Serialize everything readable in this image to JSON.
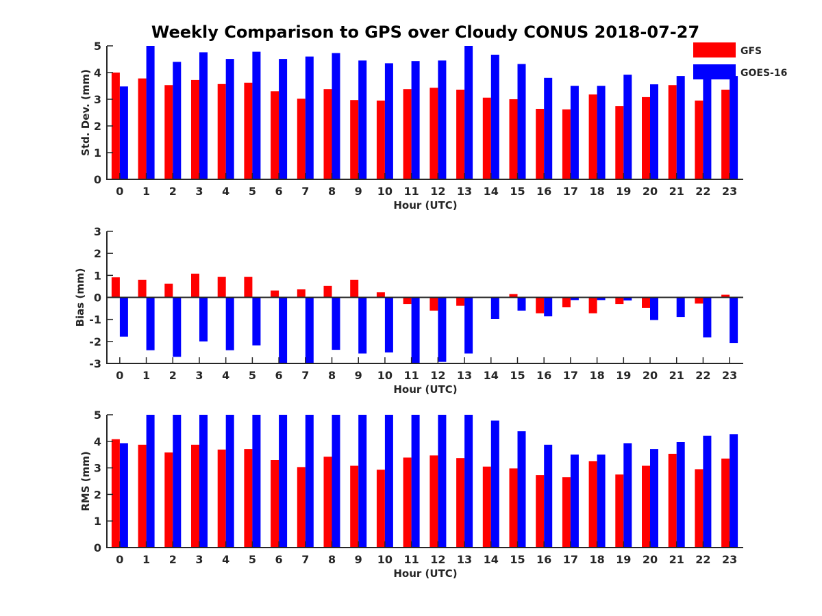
{
  "figure_title": "Weekly Comparison to GPS over Cloudy CONUS 2018-07-27",
  "legend": {
    "entries": [
      {
        "label": "GFS",
        "color": "#ff0000"
      },
      {
        "label": "GOES-16",
        "color": "#0000ff"
      }
    ]
  },
  "chart_data": [
    {
      "type": "bar",
      "title": "Weekly Comparison to GPS over Cloudy CONUS 2018-07-27",
      "xlabel": "Hour (UTC)",
      "ylabel": "Std. Dev. (mm)",
      "ylim": [
        0,
        5
      ],
      "yticks": [
        0,
        1,
        2,
        3,
        4,
        5
      ],
      "categories": [
        "0",
        "1",
        "2",
        "3",
        "4",
        "5",
        "6",
        "7",
        "8",
        "9",
        "10",
        "11",
        "12",
        "13",
        "14",
        "15",
        "16",
        "17",
        "18",
        "19",
        "20",
        "21",
        "22",
        "23"
      ],
      "series": [
        {
          "name": "GFS",
          "color": "#ff0000",
          "values": [
            4.0,
            3.78,
            3.53,
            3.72,
            3.57,
            3.62,
            3.3,
            3.02,
            3.38,
            2.97,
            2.95,
            3.38,
            3.43,
            3.36,
            3.06,
            3.0,
            2.64,
            2.62,
            3.18,
            2.74,
            3.08,
            3.53,
            2.95,
            3.36
          ]
        },
        {
          "name": "GOES-16",
          "color": "#0000ff",
          "values": [
            3.48,
            5.0,
            4.4,
            4.76,
            4.51,
            4.78,
            4.51,
            4.6,
            4.73,
            4.45,
            4.35,
            4.43,
            4.45,
            5.0,
            4.67,
            4.32,
            3.8,
            3.5,
            3.5,
            3.92,
            3.56,
            3.87,
            3.79,
            3.87
          ]
        }
      ],
      "legend": "top-right"
    },
    {
      "type": "bar",
      "xlabel": "Hour (UTC)",
      "ylabel": "Bias (mm)",
      "ylim": [
        -3,
        3
      ],
      "yticks": [
        -3,
        -2,
        -1,
        0,
        1,
        2,
        3
      ],
      "categories": [
        "0",
        "1",
        "2",
        "3",
        "4",
        "5",
        "6",
        "7",
        "8",
        "9",
        "10",
        "11",
        "12",
        "13",
        "14",
        "15",
        "16",
        "17",
        "18",
        "19",
        "20",
        "21",
        "22",
        "23"
      ],
      "series": [
        {
          "name": "GFS",
          "color": "#ff0000",
          "values": [
            0.91,
            0.8,
            0.62,
            1.08,
            0.93,
            0.93,
            0.31,
            0.37,
            0.52,
            0.8,
            0.23,
            -0.3,
            -0.6,
            -0.38,
            0.0,
            0.15,
            -0.72,
            -0.45,
            -0.72,
            -0.3,
            -0.48,
            0.0,
            -0.28,
            0.12
          ]
        },
        {
          "name": "GOES-16",
          "color": "#0000ff",
          "values": [
            -1.78,
            -2.4,
            -2.7,
            -2.0,
            -2.4,
            -2.18,
            -3.0,
            -3.0,
            -2.38,
            -2.55,
            -2.5,
            -3.0,
            -2.93,
            -2.55,
            -0.98,
            -0.6,
            -0.86,
            -0.12,
            -0.12,
            -0.14,
            -1.03,
            -0.89,
            -1.82,
            -2.07
          ]
        }
      ]
    },
    {
      "type": "bar",
      "xlabel": "Hour (UTC)",
      "ylabel": "RMS (mm)",
      "ylim": [
        0,
        5
      ],
      "yticks": [
        0,
        1,
        2,
        3,
        4,
        5
      ],
      "categories": [
        "0",
        "1",
        "2",
        "3",
        "4",
        "5",
        "6",
        "7",
        "8",
        "9",
        "10",
        "11",
        "12",
        "13",
        "14",
        "15",
        "16",
        "17",
        "18",
        "19",
        "20",
        "21",
        "22",
        "23"
      ],
      "series": [
        {
          "name": "GFS",
          "color": "#ff0000",
          "values": [
            4.08,
            3.87,
            3.58,
            3.87,
            3.69,
            3.71,
            3.3,
            3.03,
            3.42,
            3.08,
            2.93,
            3.39,
            3.47,
            3.37,
            3.05,
            2.98,
            2.73,
            2.65,
            3.25,
            2.75,
            3.08,
            3.53,
            2.95,
            3.35
          ]
        },
        {
          "name": "GOES-16",
          "color": "#0000ff",
          "values": [
            3.93,
            5.0,
            5.0,
            5.0,
            5.0,
            5.0,
            5.0,
            5.0,
            5.0,
            5.0,
            5.0,
            5.0,
            5.0,
            5.0,
            4.78,
            4.38,
            3.87,
            3.5,
            3.5,
            3.93,
            3.71,
            3.97,
            4.21,
            4.27
          ]
        }
      ]
    }
  ]
}
